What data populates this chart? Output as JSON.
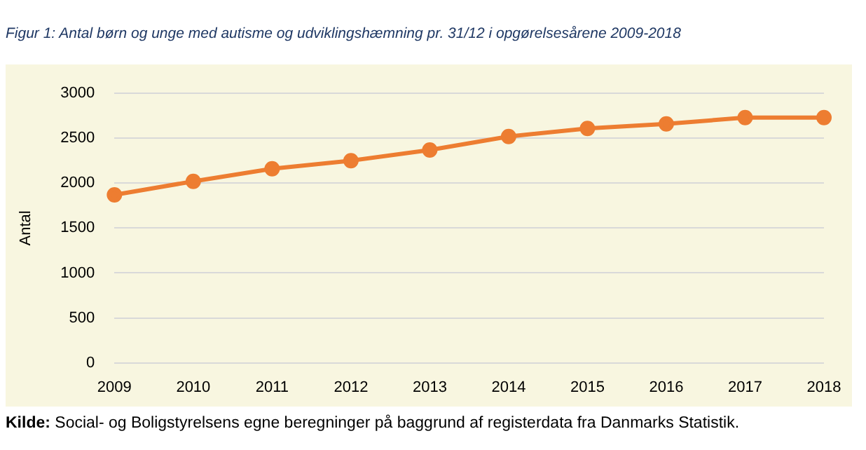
{
  "chart_data": {
    "type": "line",
    "title": "Figur 1: Antal børn og unge med autisme og udviklingshæmning pr. 31/12 i opgørelsesårene 2009-2018",
    "ylabel": "Antal",
    "categories": [
      "2009",
      "2010",
      "2011",
      "2012",
      "2013",
      "2014",
      "2015",
      "2016",
      "2017",
      "2018"
    ],
    "series": [
      {
        "color": "#ed7d31",
        "values": [
          1870,
          2020,
          2160,
          2250,
          2370,
          2520,
          2610,
          2660,
          2730,
          2730
        ]
      }
    ],
    "ylim": [
      0,
      3000
    ],
    "yticks": [
      0,
      500,
      1000,
      1500,
      2000,
      2500,
      3000
    ],
    "grid": "y",
    "legend": false,
    "marker": "circle",
    "line_style": "solid",
    "annotations": [
      "Kilde: Social- og Boligstyrelsens egne beregninger på baggrund af registerdata fra Danmarks Statistik."
    ]
  }
}
